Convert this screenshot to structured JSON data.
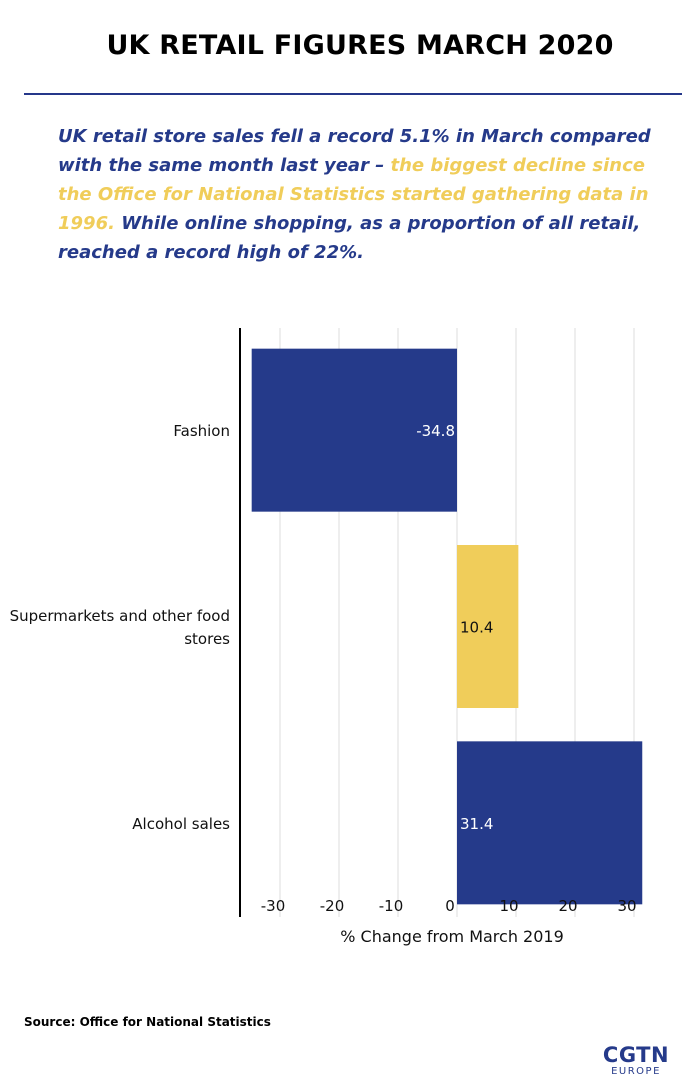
{
  "header": {
    "title": "UK RETAIL FIGURES MARCH 2020",
    "intro_part1": "UK retail store sales fell a record 5.1% in March compared with the same month last year – ",
    "intro_highlight": "the biggest decline since the Office for National Statistics started gathering data in 1996.",
    "intro_part2": " While online shopping, as a proportion of all retail, reached a record high of 22%."
  },
  "chart_data": {
    "type": "bar",
    "orientation": "horizontal",
    "categories": [
      "Fashion",
      "Supermarkets and other food stores",
      "Alcohol sales"
    ],
    "values": [
      -34.8,
      10.4,
      31.4
    ],
    "value_labels": [
      "-34.8",
      "10.4",
      "31.4"
    ],
    "bar_colors": [
      "#253a8a",
      "#f0cd5a",
      "#253a8a"
    ],
    "xlabel": "% Change from March 2019",
    "ylabel": "",
    "xlim": [
      -35,
      33
    ],
    "xticks": [
      -30,
      -20,
      -10,
      0,
      10,
      20,
      30
    ],
    "xtick_labels": [
      "-30",
      "-20",
      "-10",
      "0",
      "10",
      "20",
      "30"
    ],
    "grid": true
  },
  "footer": {
    "source": "Source: Office for National Statistics",
    "logo_main": "CGTN",
    "logo_sub": "EUROPE"
  }
}
